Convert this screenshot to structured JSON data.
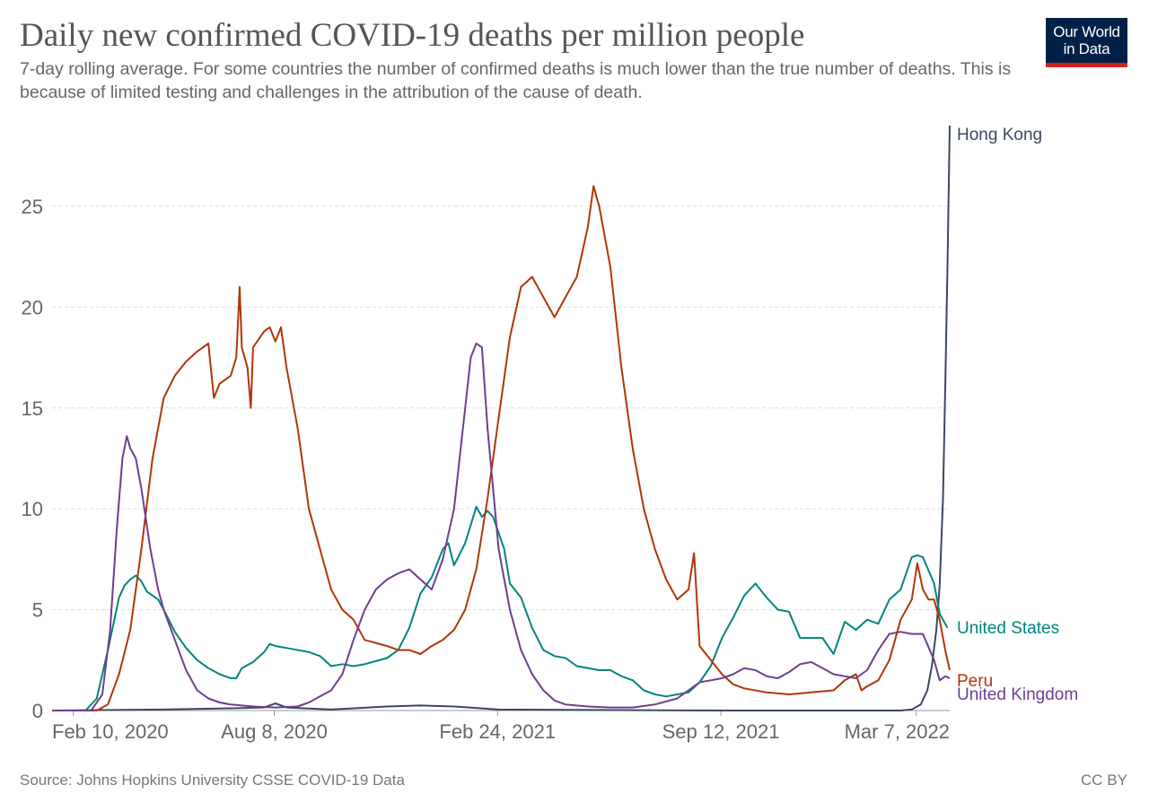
{
  "header": {
    "title": "Daily new confirmed COVID-19 deaths per million people",
    "subtitle": "7-day rolling average. For some countries the number of confirmed deaths is much lower than the true number of deaths. This is because of limited testing and challenges in the attribution of the cause of death.",
    "logo_line1": "Our World",
    "logo_line2": "in Data"
  },
  "footer": {
    "source": "Source: Johns Hopkins University CSSE COVID-19 Data",
    "license": "CC BY"
  },
  "colors": {
    "hong_kong": "#3a4862",
    "united_states": "#00847e",
    "peru": "#b13507",
    "united_kingdom": "#6d3e91",
    "grid": "#dddddd",
    "axis_text": "#666666"
  },
  "chart_data": {
    "type": "line",
    "title": "Daily new confirmed COVID-19 deaths per million people",
    "xlabel": "",
    "ylabel": "",
    "x_unit": "days since 2020-01-22",
    "xlim": [
      0,
      804
    ],
    "ylim": [
      0,
      29
    ],
    "yticks": [
      0,
      5,
      10,
      15,
      20,
      25
    ],
    "xticks": [
      {
        "label": "Feb 10, 2020",
        "x": 19
      },
      {
        "label": "Aug 8, 2020",
        "x": 199
      },
      {
        "label": "Feb 24, 2021",
        "x": 399
      },
      {
        "label": "Sep 12, 2021",
        "x": 599
      },
      {
        "label": "Mar 7, 2022",
        "x": 774
      }
    ],
    "grid": true,
    "series": [
      {
        "name": "Hong Kong",
        "key": "hong_kong",
        "points": [
          [
            0,
            0
          ],
          [
            100,
            0.05
          ],
          [
            150,
            0.1
          ],
          [
            190,
            0.15
          ],
          [
            200,
            0.35
          ],
          [
            210,
            0.15
          ],
          [
            250,
            0.05
          ],
          [
            300,
            0.2
          ],
          [
            330,
            0.25
          ],
          [
            360,
            0.2
          ],
          [
            400,
            0.05
          ],
          [
            600,
            0
          ],
          [
            760,
            0
          ],
          [
            770,
            0.05
          ],
          [
            778,
            0.3
          ],
          [
            784,
            1.0
          ],
          [
            788,
            2.2
          ],
          [
            792,
            4.0
          ],
          [
            795,
            6.2
          ],
          [
            798,
            10.5
          ],
          [
            800,
            16
          ],
          [
            802,
            22
          ],
          [
            804,
            29
          ]
        ]
      },
      {
        "name": "United States",
        "key": "united_states",
        "points": [
          [
            0,
            0
          ],
          [
            30,
            0
          ],
          [
            40,
            0.6
          ],
          [
            50,
            3
          ],
          [
            60,
            5.6
          ],
          [
            65,
            6.2
          ],
          [
            70,
            6.5
          ],
          [
            75,
            6.7
          ],
          [
            80,
            6.4
          ],
          [
            85,
            5.9
          ],
          [
            95,
            5.5
          ],
          [
            100,
            5
          ],
          [
            110,
            3.9
          ],
          [
            120,
            3.1
          ],
          [
            130,
            2.5
          ],
          [
            140,
            2.1
          ],
          [
            150,
            1.8
          ],
          [
            160,
            1.6
          ],
          [
            165,
            1.6
          ],
          [
            170,
            2.1
          ],
          [
            180,
            2.4
          ],
          [
            190,
            2.9
          ],
          [
            195,
            3.3
          ],
          [
            200,
            3.2
          ],
          [
            210,
            3.1
          ],
          [
            230,
            2.9
          ],
          [
            240,
            2.7
          ],
          [
            250,
            2.2
          ],
          [
            260,
            2.3
          ],
          [
            270,
            2.2
          ],
          [
            280,
            2.3
          ],
          [
            300,
            2.6
          ],
          [
            310,
            3.0
          ],
          [
            320,
            4.1
          ],
          [
            330,
            5.8
          ],
          [
            340,
            6.6
          ],
          [
            350,
            8.0
          ],
          [
            355,
            8.3
          ],
          [
            360,
            7.2
          ],
          [
            370,
            8.3
          ],
          [
            375,
            9.2
          ],
          [
            380,
            10.1
          ],
          [
            385,
            9.6
          ],
          [
            390,
            9.9
          ],
          [
            395,
            9.6
          ],
          [
            405,
            8.0
          ],
          [
            410,
            6.3
          ],
          [
            420,
            5.6
          ],
          [
            430,
            4.1
          ],
          [
            440,
            3.0
          ],
          [
            450,
            2.7
          ],
          [
            460,
            2.6
          ],
          [
            470,
            2.2
          ],
          [
            490,
            2.0
          ],
          [
            500,
            2.0
          ],
          [
            510,
            1.7
          ],
          [
            520,
            1.5
          ],
          [
            530,
            1.0
          ],
          [
            540,
            0.8
          ],
          [
            550,
            0.7
          ],
          [
            560,
            0.8
          ],
          [
            570,
            0.9
          ],
          [
            580,
            1.4
          ],
          [
            590,
            2.2
          ],
          [
            600,
            3.6
          ],
          [
            610,
            4.6
          ],
          [
            620,
            5.7
          ],
          [
            630,
            6.3
          ],
          [
            640,
            5.6
          ],
          [
            650,
            5.0
          ],
          [
            660,
            4.9
          ],
          [
            670,
            3.6
          ],
          [
            680,
            3.6
          ],
          [
            690,
            3.6
          ],
          [
            700,
            2.8
          ],
          [
            710,
            4.4
          ],
          [
            720,
            4.0
          ],
          [
            730,
            4.5
          ],
          [
            740,
            4.3
          ],
          [
            750,
            5.5
          ],
          [
            760,
            6.0
          ],
          [
            770,
            7.6
          ],
          [
            775,
            7.7
          ],
          [
            780,
            7.6
          ],
          [
            790,
            6.3
          ],
          [
            795,
            4.8
          ],
          [
            802,
            4.1
          ]
        ]
      },
      {
        "name": "Peru",
        "key": "peru",
        "points": [
          [
            0,
            0
          ],
          [
            40,
            0
          ],
          [
            50,
            0.3
          ],
          [
            60,
            1.8
          ],
          [
            70,
            4.0
          ],
          [
            80,
            8.0
          ],
          [
            90,
            12.5
          ],
          [
            100,
            15.5
          ],
          [
            110,
            16.6
          ],
          [
            120,
            17.3
          ],
          [
            130,
            17.8
          ],
          [
            140,
            18.2
          ],
          [
            145,
            15.5
          ],
          [
            150,
            16.2
          ],
          [
            160,
            16.6
          ],
          [
            165,
            17.5
          ],
          [
            168,
            21.0
          ],
          [
            170,
            18.0
          ],
          [
            175,
            17.0
          ],
          [
            178,
            15.0
          ],
          [
            180,
            18.0
          ],
          [
            190,
            18.8
          ],
          [
            195,
            19.0
          ],
          [
            200,
            18.3
          ],
          [
            205,
            19.0
          ],
          [
            210,
            17.0
          ],
          [
            220,
            14.0
          ],
          [
            230,
            10.0
          ],
          [
            240,
            8.0
          ],
          [
            250,
            6.0
          ],
          [
            260,
            5.0
          ],
          [
            270,
            4.5
          ],
          [
            280,
            3.5
          ],
          [
            300,
            3.2
          ],
          [
            310,
            3.0
          ],
          [
            320,
            3.0
          ],
          [
            330,
            2.8
          ],
          [
            340,
            3.2
          ],
          [
            350,
            3.5
          ],
          [
            360,
            4.0
          ],
          [
            370,
            5.0
          ],
          [
            380,
            7.0
          ],
          [
            390,
            10.5
          ],
          [
            400,
            14.5
          ],
          [
            410,
            18.5
          ],
          [
            420,
            21.0
          ],
          [
            430,
            21.5
          ],
          [
            440,
            20.5
          ],
          [
            450,
            19.5
          ],
          [
            460,
            20.5
          ],
          [
            470,
            21.5
          ],
          [
            480,
            24.0
          ],
          [
            485,
            26.0
          ],
          [
            490,
            25.0
          ],
          [
            500,
            22.0
          ],
          [
            510,
            17.0
          ],
          [
            520,
            13.0
          ],
          [
            530,
            10.0
          ],
          [
            540,
            8.0
          ],
          [
            550,
            6.5
          ],
          [
            560,
            5.5
          ],
          [
            570,
            6.0
          ],
          [
            575,
            7.8
          ],
          [
            580,
            3.2
          ],
          [
            590,
            2.5
          ],
          [
            600,
            1.8
          ],
          [
            610,
            1.3
          ],
          [
            620,
            1.1
          ],
          [
            640,
            0.9
          ],
          [
            660,
            0.8
          ],
          [
            680,
            0.9
          ],
          [
            700,
            1.0
          ],
          [
            710,
            1.5
          ],
          [
            720,
            1.8
          ],
          [
            725,
            1.0
          ],
          [
            730,
            1.2
          ],
          [
            740,
            1.5
          ],
          [
            750,
            2.5
          ],
          [
            760,
            4.5
          ],
          [
            770,
            5.5
          ],
          [
            775,
            7.3
          ],
          [
            780,
            6.0
          ],
          [
            785,
            5.5
          ],
          [
            790,
            5.5
          ],
          [
            795,
            4.5
          ],
          [
            800,
            3.0
          ],
          [
            804,
            2.0
          ]
        ]
      },
      {
        "name": "United Kingdom",
        "key": "united_kingdom",
        "points": [
          [
            0,
            0
          ],
          [
            35,
            0
          ],
          [
            45,
            0.8
          ],
          [
            52,
            4.0
          ],
          [
            58,
            9.0
          ],
          [
            63,
            12.5
          ],
          [
            67,
            13.6
          ],
          [
            70,
            13.0
          ],
          [
            75,
            12.5
          ],
          [
            80,
            11.0
          ],
          [
            88,
            8.0
          ],
          [
            95,
            6.0
          ],
          [
            100,
            5.0
          ],
          [
            110,
            3.5
          ],
          [
            120,
            2.0
          ],
          [
            130,
            1.0
          ],
          [
            140,
            0.6
          ],
          [
            150,
            0.4
          ],
          [
            160,
            0.3
          ],
          [
            180,
            0.2
          ],
          [
            200,
            0.15
          ],
          [
            220,
            0.2
          ],
          [
            230,
            0.4
          ],
          [
            250,
            1.0
          ],
          [
            260,
            1.8
          ],
          [
            270,
            3.5
          ],
          [
            280,
            5.0
          ],
          [
            290,
            6.0
          ],
          [
            300,
            6.5
          ],
          [
            310,
            6.8
          ],
          [
            320,
            7.0
          ],
          [
            330,
            6.5
          ],
          [
            340,
            6.0
          ],
          [
            350,
            7.5
          ],
          [
            360,
            10.0
          ],
          [
            365,
            12.5
          ],
          [
            370,
            15.0
          ],
          [
            375,
            17.5
          ],
          [
            380,
            18.2
          ],
          [
            385,
            18.0
          ],
          [
            390,
            14.0
          ],
          [
            395,
            11.0
          ],
          [
            400,
            8.0
          ],
          [
            410,
            5.0
          ],
          [
            420,
            3.0
          ],
          [
            430,
            1.8
          ],
          [
            440,
            1.0
          ],
          [
            450,
            0.5
          ],
          [
            460,
            0.3
          ],
          [
            480,
            0.2
          ],
          [
            500,
            0.15
          ],
          [
            520,
            0.15
          ],
          [
            540,
            0.3
          ],
          [
            560,
            0.6
          ],
          [
            570,
            1.0
          ],
          [
            580,
            1.4
          ],
          [
            590,
            1.5
          ],
          [
            600,
            1.6
          ],
          [
            610,
            1.8
          ],
          [
            620,
            2.1
          ],
          [
            630,
            2.0
          ],
          [
            640,
            1.7
          ],
          [
            650,
            1.6
          ],
          [
            660,
            1.9
          ],
          [
            670,
            2.3
          ],
          [
            680,
            2.4
          ],
          [
            690,
            2.1
          ],
          [
            700,
            1.8
          ],
          [
            710,
            1.7
          ],
          [
            720,
            1.6
          ],
          [
            730,
            2.0
          ],
          [
            740,
            3.0
          ],
          [
            750,
            3.8
          ],
          [
            760,
            3.9
          ],
          [
            770,
            3.8
          ],
          [
            780,
            3.8
          ],
          [
            790,
            2.5
          ],
          [
            795,
            1.5
          ],
          [
            800,
            1.7
          ],
          [
            804,
            1.6
          ]
        ]
      }
    ]
  }
}
